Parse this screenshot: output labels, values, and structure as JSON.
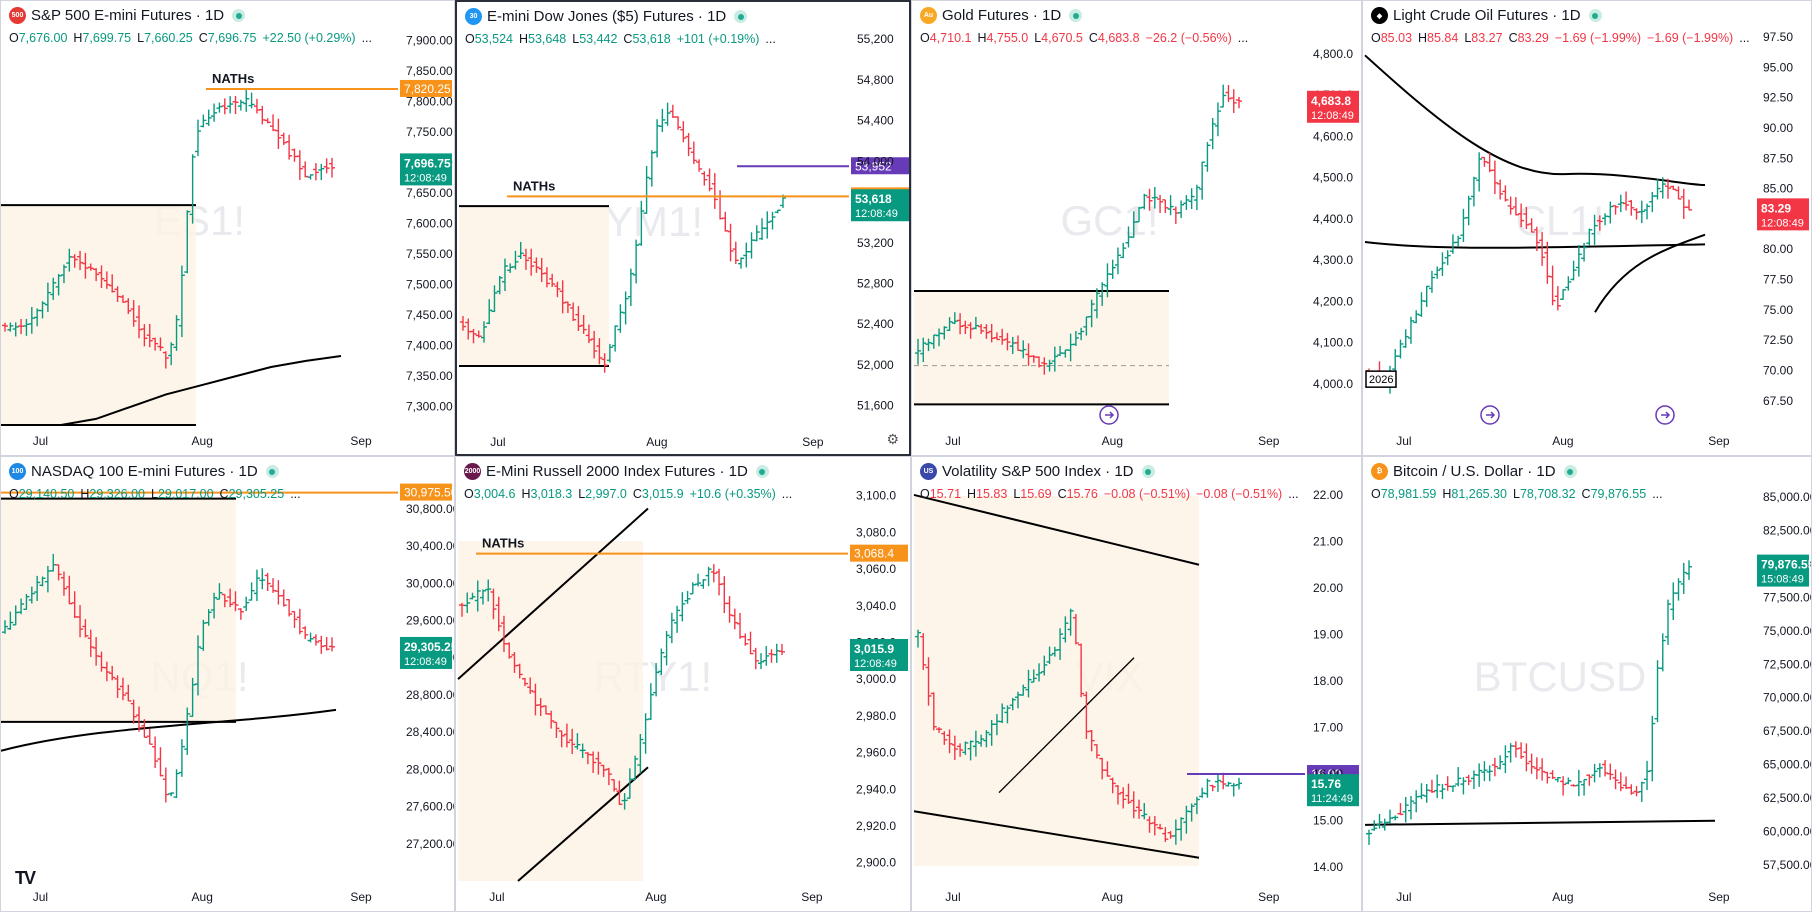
{
  "colors": {
    "up": "#089981",
    "down": "#f23645",
    "orange": "#f7931a",
    "purple": "#673ab7",
    "black": "#000000"
  },
  "chart_data": [
    {
      "type": "ohlc",
      "symbol_watermark": "ES1!",
      "title": "S&P 500 E-mini Futures · 1D",
      "logo": "500",
      "logo_color": "#e53935",
      "ohlc": {
        "o": "7,676.00",
        "h": "7,699.75",
        "l": "7,660.25",
        "c": "7,696.75",
        "chg": "+22.50 (+0.29%)"
      },
      "yticks": [
        "7,900.00",
        "7,850.00",
        "7,800.00",
        "7,750.00",
        "7,700.00",
        "7,650.00",
        "7,600.00",
        "7,550.00",
        "7,500.00",
        "7,450.00",
        "7,400.00",
        "7,350.00",
        "7,300.00"
      ],
      "ylim": [
        7270,
        7925
      ],
      "xticks": [
        "Jul",
        "Aug",
        "Sep"
      ],
      "annotations": [
        {
          "type": "hline",
          "label": "NATHs",
          "value": 7820.25,
          "color": "orange",
          "tag": "7,820.25"
        }
      ],
      "price_tag": {
        "value": "7,696.75",
        "timer": "12:08:49",
        "color": "up"
      },
      "ma_line": [
        7270,
        7280,
        7300,
        7320,
        7335,
        7350,
        7365,
        7375,
        7383
      ],
      "range_box": {
        "top": 7630,
        "bottom": 7270
      }
    },
    {
      "type": "ohlc",
      "symbol_watermark": "YM1!",
      "title": "E-mini Dow Jones ($5) Futures · 1D",
      "logo": "30",
      "logo_color": "#2196f3",
      "ohlc": {
        "o": "53,524",
        "h": "53,648",
        "l": "53,442",
        "c": "53,618",
        "chg": "+101 (+0.19%)"
      },
      "yticks": [
        "55,200",
        "54,800",
        "54,400",
        "54,000",
        "53,600",
        "53,200",
        "52,800",
        "52,400",
        "52,000",
        "51,600"
      ],
      "ylim": [
        51400,
        55330
      ],
      "xticks": [
        "Jul",
        "Aug",
        "Sep"
      ],
      "annotations": [
        {
          "type": "hline",
          "label": "NATHs",
          "value": 53656,
          "color": "orange",
          "tag": "53,656"
        },
        {
          "type": "hline",
          "label": "",
          "value": 53952,
          "color": "purple",
          "tag": "53,952"
        }
      ],
      "price_tag": {
        "value": "53,618",
        "timer": "12:08:49",
        "color": "up"
      },
      "range_box": {
        "top": 53560,
        "bottom": 51990
      }
    },
    {
      "type": "ohlc",
      "symbol_watermark": "GC1!",
      "title": "Gold Futures · 1D",
      "logo": "Au",
      "logo_color": "#f9a825",
      "ohlc": {
        "o": "4,710.1",
        "h": "4,755.0",
        "l": "4,670.5",
        "c": "4,683.8",
        "chg": "−26.2 (−0.56%)"
      },
      "yticks": [
        "4,800.0",
        "4,700.0",
        "4,600.0",
        "4,500.0",
        "4,400.0",
        "4,300.0",
        "4,200.0",
        "4,100.0",
        "4,000.0"
      ],
      "ylim": [
        3900,
        4870
      ],
      "xticks": [
        "Jul",
        "Aug",
        "Sep"
      ],
      "annotations": [],
      "price_tag": {
        "value": "4,683.8",
        "timer": "12:08:49",
        "color": "down"
      },
      "range_box": {
        "top": 4225,
        "bottom": 3950
      }
    },
    {
      "type": "ohlc",
      "symbol_watermark": "CL1!",
      "title": "Light Crude Oil Futures · 1D",
      "logo": "◆",
      "logo_color": "#000000",
      "ohlc": {
        "o": "85.03",
        "h": "85.84",
        "l": "83.27",
        "c": "83.29",
        "chg": "−1.69 (−1.99%)",
        "chg2": "−1.69 (−1.99%)"
      },
      "yticks": [
        "97.50",
        "95.00",
        "92.50",
        "90.00",
        "87.50",
        "85.00",
        "82.50",
        "80.00",
        "77.50",
        "75.00",
        "72.50",
        "70.00",
        "67.50"
      ],
      "ylim": [
        65.5,
        98.5
      ],
      "xticks": [
        "Jul",
        "Aug",
        "Sep"
      ],
      "annotations": [],
      "price_tag": {
        "value": "83.29",
        "timer": "12:08:49",
        "color": "down"
      },
      "year_label": "2026"
    },
    {
      "type": "ohlc",
      "symbol_watermark": "NQ1!",
      "title": "NASDAQ 100 E-mini Futures · 1D",
      "logo": "100",
      "logo_color": "#1e88e5",
      "ohlc": {
        "o": "29,140.50",
        "h": "29,326.00",
        "l": "29,017.00",
        "c": "29,305.25",
        "chg": ""
      },
      "yticks": [
        "30,800.00",
        "30,400.00",
        "30,000.00",
        "29,600.00",
        "29,200.00",
        "28,800.00",
        "28,400.00",
        "28,000.00",
        "27,600.00",
        "27,200.00"
      ],
      "ylim": [
        26800,
        31100
      ],
      "xticks": [
        "Jul",
        "Aug",
        "Sep"
      ],
      "annotations": [
        {
          "type": "hline",
          "label": "",
          "value": 30975.5,
          "color": "orange",
          "tag": "30,975.50"
        }
      ],
      "price_tag": {
        "value": "29,305.25",
        "timer": "12:08:49",
        "color": "up"
      },
      "range_box": {
        "top": 30910,
        "bottom": 28510
      }
    },
    {
      "type": "ohlc",
      "symbol_watermark": "RTY1!",
      "title": "E-Mini Russell 2000 Index Futures · 1D",
      "logo": "2000",
      "logo_color": "#6a1b4d",
      "ohlc": {
        "o": "3,004.6",
        "h": "3,018.3",
        "l": "2,997.0",
        "c": "3,015.9",
        "chg": "+10.6 (+0.35%)"
      },
      "yticks": [
        "3,100.0",
        "3,080.0",
        "3,060.0",
        "3,040.0",
        "3,020.0",
        "3,000.0",
        "2,980.0",
        "2,960.0",
        "2,940.0",
        "2,920.0",
        "2,900.0"
      ],
      "ylim": [
        2890,
        3108
      ],
      "xticks": [
        "Jul",
        "Aug",
        "Sep"
      ],
      "annotations": [
        {
          "type": "hline",
          "label": "NATHs",
          "value": 3068.4,
          "color": "orange",
          "tag": "3,068.4"
        }
      ],
      "price_tag": {
        "value": "3,015.9",
        "timer": "12:08:49",
        "color": "up"
      }
    },
    {
      "type": "ohlc",
      "symbol_watermark": "VIX",
      "title": "Volatility S&P 500 Index · 1D",
      "logo": "US",
      "logo_color": "#3949ab",
      "ohlc": {
        "o": "15.71",
        "h": "15.83",
        "l": "15.69",
        "c": "15.76",
        "chg": "−0.08 (−0.51%)",
        "chg2": "−0.08 (−0.51%)"
      },
      "yticks": [
        "22.00",
        "21.00",
        "20.00",
        "19.00",
        "18.00",
        "17.00",
        "16.00",
        "15.00",
        "14.00"
      ],
      "ylim": [
        13.7,
        22.3
      ],
      "xticks": [
        "Jul",
        "Aug",
        "Sep"
      ],
      "annotations": [
        {
          "type": "hline",
          "label": "",
          "value": 16.0,
          "color": "purple",
          "tag": "16.00"
        }
      ],
      "price_tag": {
        "value": "15.76",
        "timer": "11:24:49",
        "color": "up"
      }
    },
    {
      "type": "ohlc",
      "symbol_watermark": "BTCUSD",
      "title": "Bitcoin / U.S. Dollar · 1D",
      "logo": "₿",
      "logo_color": "#f7931a",
      "ohlc": {
        "o": "78,981.59",
        "h": "81,265.30",
        "l": "78,708.32",
        "c": "79,876.55",
        "chg": ""
      },
      "yticks": [
        "85,000.00",
        "82,500.00",
        "80,000.00",
        "77,500.00",
        "75,000.00",
        "72,500.00",
        "70,000.00",
        "67,500.00",
        "65,000.00",
        "62,500.00",
        "60,000.00",
        "57,500.00"
      ],
      "ylim": [
        56300,
        86200
      ],
      "xticks": [
        "Jul",
        "Aug",
        "Sep"
      ],
      "annotations": [],
      "price_tag": {
        "value": "79,876.55",
        "timer": "15:08:49",
        "color": "up"
      }
    }
  ]
}
